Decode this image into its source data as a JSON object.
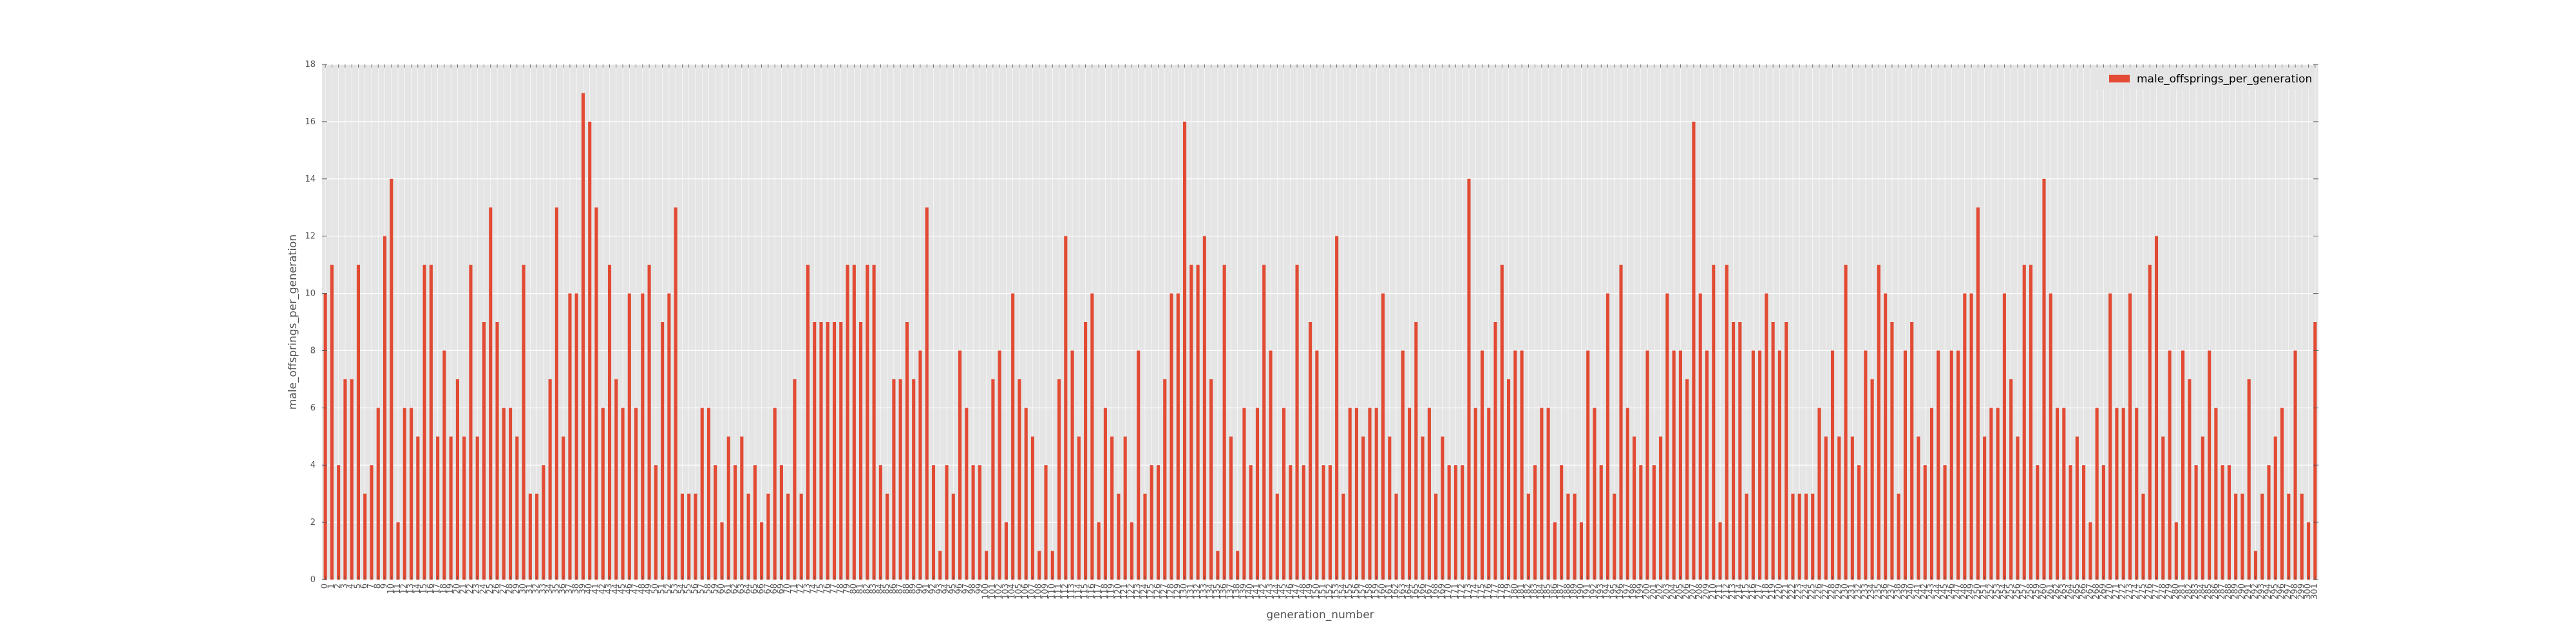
{
  "chart_data": {
    "type": "bar",
    "xlabel": "generation_number",
    "ylabel": "male_offsprings_per_generation",
    "ylim": [
      0,
      18
    ],
    "yticks": [
      0,
      2,
      4,
      6,
      8,
      10,
      12,
      14,
      16,
      18
    ],
    "grid": true,
    "legend_position": "top-right",
    "colors": {
      "bar": "#E24A33",
      "plot_bg": "#E5E5E5",
      "grid": "#FFFFFF",
      "text": "#555555"
    },
    "series": [
      {
        "name": "male_offsprings_per_generation",
        "values": [
          10,
          11,
          4,
          7,
          7,
          11,
          3,
          4,
          6,
          12,
          14,
          2,
          6,
          6,
          5,
          11,
          11,
          5,
          8,
          5,
          7,
          5,
          11,
          5,
          9,
          13,
          9,
          6,
          6,
          5,
          11,
          3,
          3,
          4,
          7,
          13,
          5,
          10,
          10,
          17,
          16,
          13,
          6,
          11,
          7,
          6,
          10,
          6,
          10,
          11,
          4,
          9,
          10,
          13,
          3,
          3,
          3,
          6,
          6,
          4,
          2,
          5,
          4,
          5,
          3,
          4,
          2,
          3,
          6,
          4,
          3,
          7,
          3,
          11,
          9,
          9,
          9,
          9,
          9,
          11,
          11,
          9,
          11,
          11,
          4,
          3,
          7,
          7,
          9,
          7,
          8,
          13,
          4,
          1,
          4,
          3,
          8,
          6,
          4,
          4,
          1,
          7,
          8,
          2,
          10,
          7,
          6,
          5,
          1,
          4,
          1,
          7,
          12,
          8,
          5,
          9,
          10,
          2,
          6,
          5,
          3,
          5,
          2,
          8,
          3,
          4,
          4,
          7,
          10,
          10,
          16,
          11,
          11,
          12,
          7,
          1,
          11,
          5,
          1,
          6,
          4,
          6,
          11,
          8,
          3,
          6,
          4,
          11,
          4,
          9,
          8,
          4,
          4,
          12,
          3,
          6,
          6,
          5,
          6,
          6,
          10,
          5,
          3,
          8,
          6,
          9,
          5,
          6,
          3,
          5,
          4,
          4,
          4,
          14,
          6,
          8,
          6,
          9,
          11,
          7,
          8,
          8,
          3,
          4,
          6,
          6,
          2,
          4,
          3,
          3,
          2,
          8,
          6,
          4,
          10,
          3,
          11,
          6,
          5,
          4,
          8,
          4,
          5,
          10,
          8,
          8,
          7,
          16,
          10,
          8,
          11,
          2,
          11,
          9,
          9,
          3,
          8,
          8,
          10,
          9,
          8,
          9,
          3,
          3,
          3,
          3,
          6,
          5,
          8,
          5,
          11,
          5,
          4,
          8,
          7,
          11,
          10,
          9,
          3,
          8,
          9,
          5,
          4,
          6,
          8,
          4,
          8,
          8,
          10,
          10,
          13,
          5,
          6,
          6,
          10,
          7,
          5,
          11,
          11,
          4,
          14,
          10,
          6,
          6,
          4,
          5,
          4,
          2,
          6,
          4,
          10,
          6,
          6,
          10,
          6,
          3,
          11,
          12,
          5,
          8,
          2,
          8,
          7,
          4,
          5,
          8,
          6,
          4,
          4,
          3,
          3,
          7,
          1,
          3,
          4,
          5,
          6,
          3,
          8,
          3,
          2,
          9
        ]
      }
    ]
  }
}
